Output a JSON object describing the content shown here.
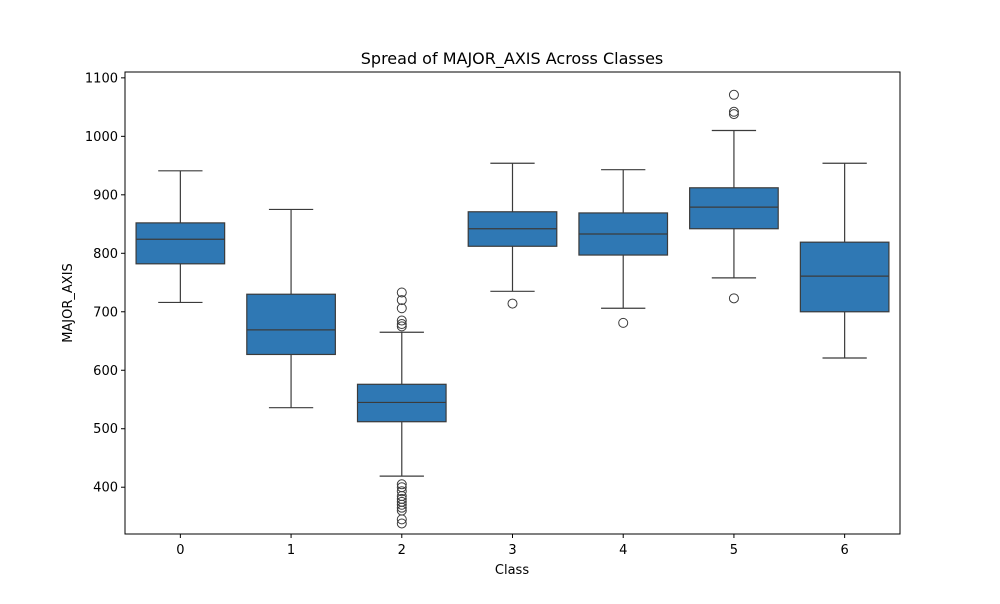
{
  "chart_data": {
    "type": "box",
    "title": "Spread of MAJOR_AXIS Across Classes",
    "xlabel": "Class",
    "ylabel": "MAJOR_AXIS",
    "ylim": [
      320,
      1110
    ],
    "yticks": [
      400,
      500,
      600,
      700,
      800,
      900,
      1000,
      1100
    ],
    "grid": false,
    "box_color": "#2f78b4",
    "edge_color": "#3b3b3b",
    "categories": [
      "0",
      "1",
      "2",
      "3",
      "4",
      "5",
      "6"
    ],
    "boxes": [
      {
        "category": "0",
        "whisker_low": 716,
        "q1": 782,
        "median": 824,
        "q3": 852,
        "whisker_high": 941,
        "outliers": []
      },
      {
        "category": "1",
        "whisker_low": 536,
        "q1": 627,
        "median": 669,
        "q3": 730,
        "whisker_high": 875,
        "outliers": []
      },
      {
        "category": "2",
        "whisker_low": 419,
        "q1": 512,
        "median": 545,
        "q3": 576,
        "whisker_high": 665,
        "outliers": [
          733,
          720,
          706,
          685,
          679,
          675,
          405,
          400,
          393,
          385,
          380,
          375,
          370,
          365,
          360,
          345,
          338
        ]
      },
      {
        "category": "3",
        "whisker_low": 735,
        "q1": 812,
        "median": 842,
        "q3": 871,
        "whisker_high": 954,
        "outliers": [
          714
        ]
      },
      {
        "category": "4",
        "whisker_low": 706,
        "q1": 797,
        "median": 833,
        "q3": 869,
        "whisker_high": 943,
        "outliers": [
          681
        ]
      },
      {
        "category": "5",
        "whisker_low": 758,
        "q1": 842,
        "median": 879,
        "q3": 912,
        "whisker_high": 1010,
        "outliers": [
          1071,
          1042,
          1038,
          723
        ]
      },
      {
        "category": "6",
        "whisker_low": 621,
        "q1": 700,
        "median": 761,
        "q3": 819,
        "whisker_high": 954,
        "outliers": []
      }
    ]
  }
}
